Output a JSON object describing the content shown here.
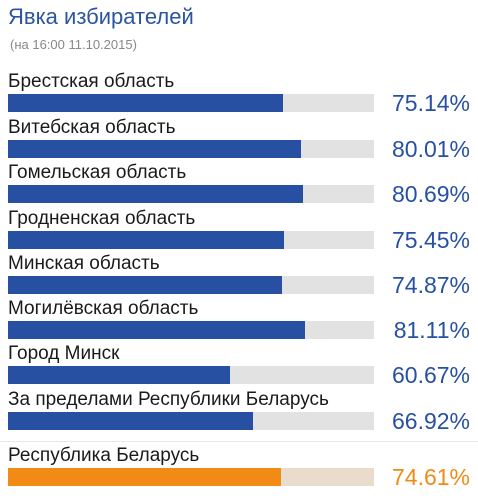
{
  "header": {
    "title": "Явка избирателей",
    "subtitle": "(на 16:00 11.10.2015)"
  },
  "colors": {
    "title": "#2b55a0",
    "bar": "#2750a3",
    "value": "#2750a3",
    "total_bar": "#f28a16",
    "total_value": "#f28a16",
    "track": "#e2e2e2",
    "total_track": "#e9dccd"
  },
  "chart_data": {
    "type": "bar",
    "orientation": "horizontal",
    "xlim": [
      0,
      100
    ],
    "unit": "%",
    "categories": [
      "Брестская область",
      "Витебская область",
      "Гомельская область",
      "Гродненская область",
      "Минская область",
      "Могилёвская область",
      "Город Минск",
      "За пределами Республики Беларусь",
      "Республика Беларусь"
    ],
    "values": [
      75.14,
      80.01,
      80.69,
      75.45,
      74.87,
      81.11,
      60.67,
      66.92,
      74.61
    ],
    "value_labels": [
      "75.14%",
      "80.01%",
      "80.69%",
      "75.45%",
      "74.87%",
      "81.11%",
      "60.67%",
      "66.92%",
      "74.61%"
    ],
    "highlight_last": true
  }
}
